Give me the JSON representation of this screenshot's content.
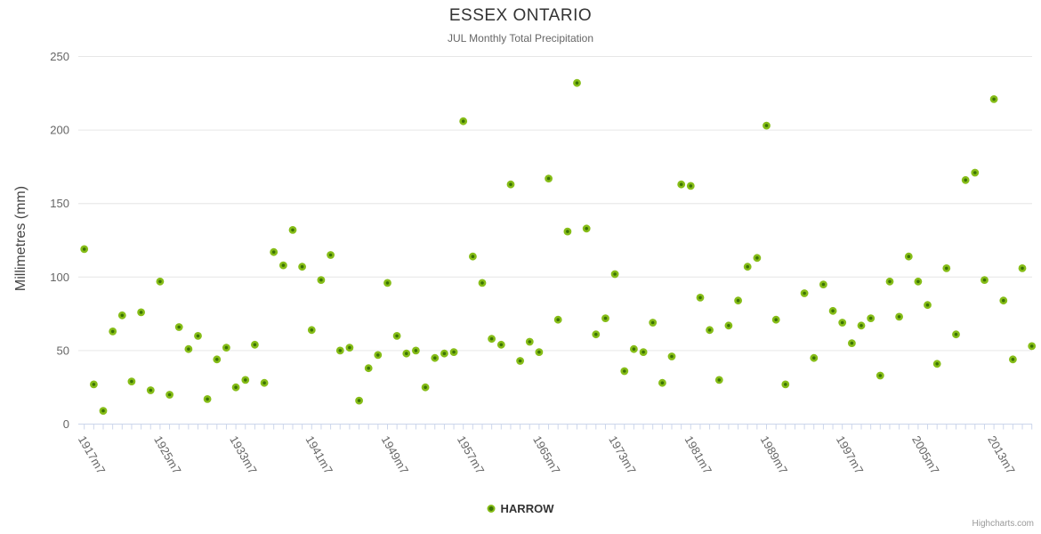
{
  "header": {
    "title": "ESSEX ONTARIO",
    "subtitle": "JUL Monthly Total Precipitation"
  },
  "y_axis": {
    "title": "Millimetres (mm)",
    "ticks": [
      0,
      50,
      100,
      150,
      200,
      250
    ]
  },
  "x_axis": {
    "labels": [
      "1917m7",
      "1925m7",
      "1933m7",
      "1941m7",
      "1949m7",
      "1957m7",
      "1965m7",
      "1973m7",
      "1981m7",
      "1989m7",
      "1997m7",
      "2005m7",
      "2013m7"
    ],
    "label_interval_years": 8,
    "tick_interval_years": 1
  },
  "legend": {
    "series_label": "HARROW"
  },
  "credits": {
    "text": "Highcharts.com"
  },
  "colors": {
    "point_core": "#3b7304",
    "point_ring": "#86bd18",
    "grid": "#e6e6e6",
    "axis_line": "#ccd6eb",
    "tick": "#ccd6eb",
    "axis_label": "#666666",
    "title": "#333333",
    "subtitle": "#666666"
  },
  "chart_data": {
    "type": "scatter",
    "title": "ESSEX ONTARIO",
    "subtitle": "JUL Monthly Total Precipitation",
    "xlabel": "",
    "ylabel": "Millimetres (mm)",
    "ylim": [
      0,
      250
    ],
    "xlim": [
      1917,
      2017
    ],
    "grid": "horizontal",
    "legend_position": "bottom",
    "x_unit": "July of each year (YYYYm7)",
    "series": [
      {
        "name": "HARROW",
        "points": [
          [
            1917,
            119
          ],
          [
            1918,
            27
          ],
          [
            1919,
            9
          ],
          [
            1920,
            63
          ],
          [
            1921,
            74
          ],
          [
            1922,
            29
          ],
          [
            1923,
            76
          ],
          [
            1924,
            23
          ],
          [
            1925,
            97
          ],
          [
            1926,
            20
          ],
          [
            1927,
            66
          ],
          [
            1928,
            51
          ],
          [
            1929,
            60
          ],
          [
            1930,
            17
          ],
          [
            1931,
            44
          ],
          [
            1932,
            52
          ],
          [
            1933,
            25
          ],
          [
            1934,
            30
          ],
          [
            1935,
            54
          ],
          [
            1936,
            28
          ],
          [
            1937,
            117
          ],
          [
            1938,
            108
          ],
          [
            1939,
            132
          ],
          [
            1940,
            107
          ],
          [
            1941,
            64
          ],
          [
            1942,
            98
          ],
          [
            1943,
            115
          ],
          [
            1944,
            50
          ],
          [
            1945,
            52
          ],
          [
            1946,
            16
          ],
          [
            1947,
            38
          ],
          [
            1948,
            47
          ],
          [
            1949,
            96
          ],
          [
            1950,
            60
          ],
          [
            1951,
            48
          ],
          [
            1952,
            50
          ],
          [
            1953,
            25
          ],
          [
            1954,
            45
          ],
          [
            1955,
            48
          ],
          [
            1956,
            49
          ],
          [
            1957,
            206
          ],
          [
            1958,
            114
          ],
          [
            1959,
            96
          ],
          [
            1960,
            58
          ],
          [
            1961,
            54
          ],
          [
            1962,
            163
          ],
          [
            1963,
            43
          ],
          [
            1964,
            56
          ],
          [
            1965,
            49
          ],
          [
            1966,
            167
          ],
          [
            1967,
            71
          ],
          [
            1968,
            131
          ],
          [
            1969,
            232
          ],
          [
            1970,
            133
          ],
          [
            1971,
            61
          ],
          [
            1972,
            72
          ],
          [
            1973,
            102
          ],
          [
            1974,
            36
          ],
          [
            1975,
            51
          ],
          [
            1976,
            49
          ],
          [
            1977,
            69
          ],
          [
            1978,
            28
          ],
          [
            1979,
            46
          ],
          [
            1980,
            163
          ],
          [
            1981,
            162
          ],
          [
            1982,
            86
          ],
          [
            1983,
            64
          ],
          [
            1984,
            30
          ],
          [
            1985,
            67
          ],
          [
            1986,
            84
          ],
          [
            1987,
            107
          ],
          [
            1988,
            113
          ],
          [
            1989,
            203
          ],
          [
            1990,
            71
          ],
          [
            1991,
            27
          ],
          [
            1993,
            89
          ],
          [
            1994,
            45
          ],
          [
            1995,
            95
          ],
          [
            1996,
            77
          ],
          [
            1997,
            69
          ],
          [
            1998,
            55
          ],
          [
            1999,
            67
          ],
          [
            2000,
            72
          ],
          [
            2001,
            33
          ],
          [
            2002,
            97
          ],
          [
            2003,
            73
          ],
          [
            2004,
            114
          ],
          [
            2005,
            97
          ],
          [
            2006,
            81
          ],
          [
            2007,
            41
          ],
          [
            2008,
            106
          ],
          [
            2009,
            61
          ],
          [
            2010,
            166
          ],
          [
            2011,
            171
          ],
          [
            2012,
            98
          ],
          [
            2013,
            221
          ],
          [
            2014,
            84
          ],
          [
            2015,
            44
          ],
          [
            2016,
            106
          ],
          [
            2017,
            53
          ]
        ]
      }
    ]
  }
}
